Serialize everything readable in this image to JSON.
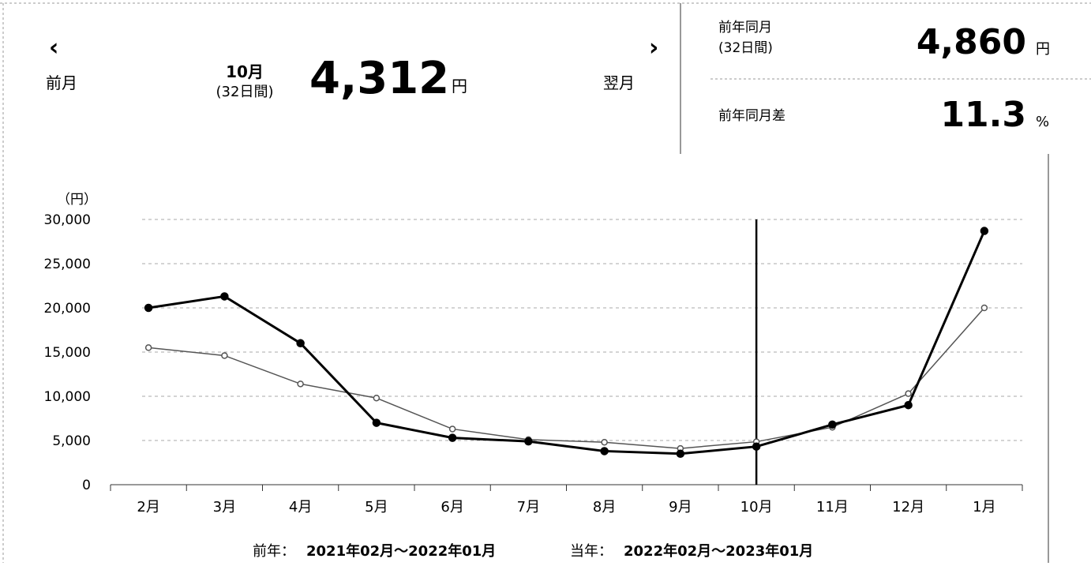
{
  "header": {
    "prev_icon": "‹",
    "prev_label": "前月",
    "month": "10月",
    "days": "(32日間)",
    "value": "4,312",
    "unit": "円",
    "next_icon": "›",
    "next_label": "翌月"
  },
  "compare": {
    "label": "前年同月",
    "days": "(32日間)",
    "value": "4,860",
    "unit": "円",
    "diff_label": "前年同月差",
    "diff_value": "11.3",
    "diff_unit": "%"
  },
  "chart_data": {
    "type": "line",
    "y_label": "（円）",
    "categories": [
      "2月",
      "3月",
      "4月",
      "5月",
      "6月",
      "7月",
      "8月",
      "9月",
      "10月",
      "11月",
      "12月",
      "1月"
    ],
    "series": [
      {
        "name": "前年：",
        "period": "2021年02月～2022年01月",
        "color": "#555555",
        "width": 1.5,
        "values": [
          15500,
          14600,
          11400,
          9800,
          6300,
          5100,
          4800,
          4100,
          4860,
          6500,
          10300,
          20000
        ]
      },
      {
        "name": "当年：",
        "period": "2022年02月～2023年01月",
        "color": "#000000",
        "width": 3,
        "values": [
          20000,
          21300,
          16000,
          7000,
          5300,
          4900,
          3800,
          3500,
          4312,
          6800,
          9000,
          28700
        ]
      }
    ],
    "ylim": [
      0,
      30000
    ],
    "yticks": [
      0,
      {
        "value": 5000,
        "label": "5,000"
      },
      {
        "value": 10000,
        "label": "10,000"
      },
      {
        "value": 15000,
        "label": "15,000"
      },
      {
        "value": 20000,
        "label": "20,000"
      },
      {
        "value": 25000,
        "label": "25,000"
      },
      {
        "value": 30000,
        "label": "30,000"
      }
    ],
    "grid": true,
    "highlight": "10月"
  }
}
